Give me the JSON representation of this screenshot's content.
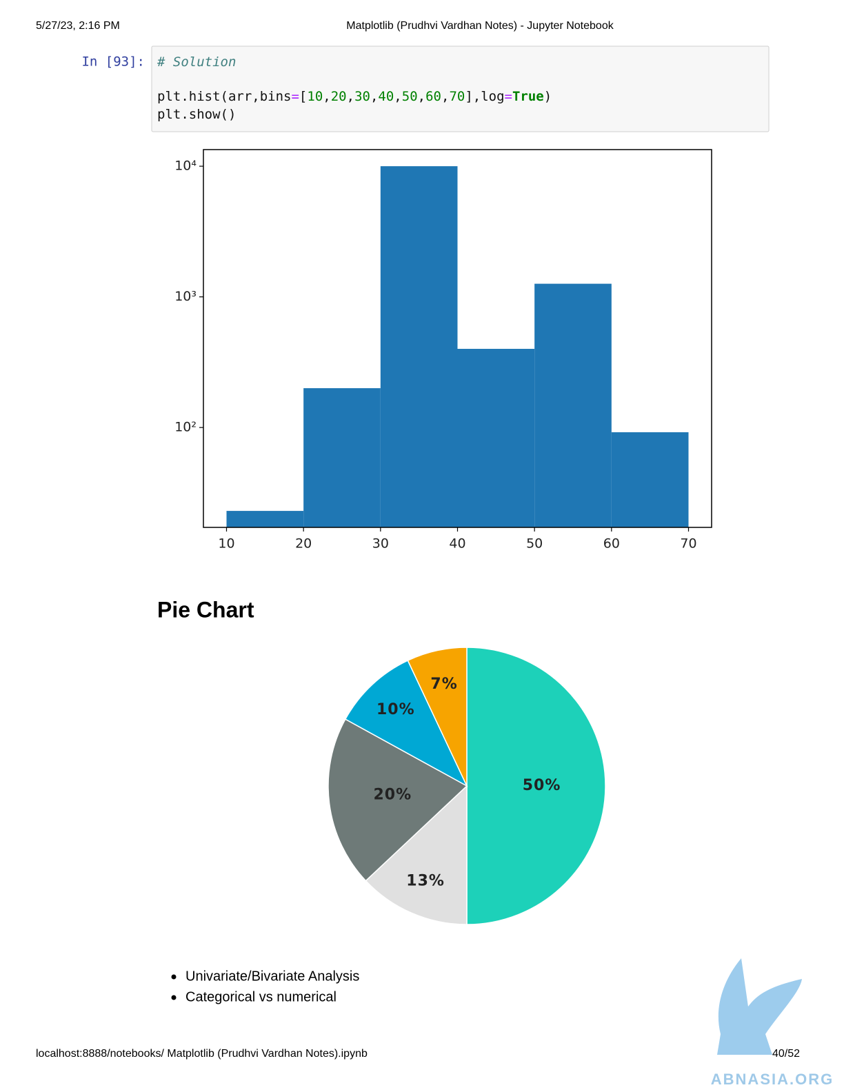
{
  "header": {
    "date": "5/27/23, 2:16 PM",
    "title": "Matplotlib (Prudhvi Vardhan Notes) - Jupyter Notebook"
  },
  "cell": {
    "prompt": "In [93]:",
    "lines": [
      "# Solution",
      "plt.hist(arr,bins=[10,20,30,40,50,60,70],log=True)",
      "plt.show()"
    ]
  },
  "chart_data": [
    {
      "type": "histogram",
      "bins": [
        10,
        20,
        30,
        40,
        50,
        60,
        70
      ],
      "values": [
        23,
        200,
        10000,
        400,
        1260,
        92
      ],
      "color": "#1f77b4",
      "log": true,
      "xlim": [
        7,
        73
      ],
      "xticks": [
        10,
        20,
        30,
        40,
        50,
        60,
        70
      ],
      "ylim": [
        17.2,
        13400
      ],
      "yticks": [
        {
          "value": 100,
          "label": "10²"
        },
        {
          "value": 1000,
          "label": "10³"
        },
        {
          "value": 10000,
          "label": "10⁴"
        }
      ]
    },
    {
      "type": "pie",
      "values": [
        50,
        13,
        20,
        10,
        7
      ],
      "value_labels": [
        "50%",
        "13%",
        "20%",
        "10%",
        "7%"
      ],
      "colors": [
        "#1dd1b9",
        "#e0e0e0",
        "#6e7a78",
        "#00a8d4",
        "#f7a400"
      ]
    }
  ],
  "heading": "Pie Chart",
  "bullets": [
    "Univariate/Bivariate Analysis",
    "Categorical vs numerical"
  ],
  "footer": {
    "url": "localhost:8888/notebooks/ Matplotlib (Prudhvi Vardhan Notes).ipynb",
    "page": "40/52"
  },
  "watermark": "ABNASIA.ORG"
}
